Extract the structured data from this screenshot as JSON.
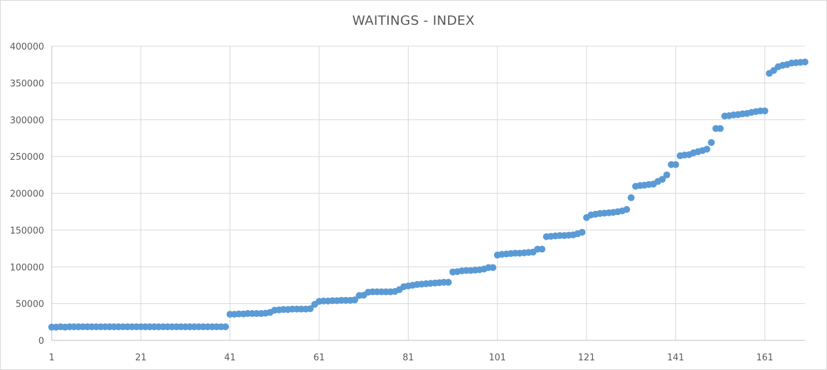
{
  "chart_data": {
    "type": "scatter",
    "title": "WAITINGS - INDEX",
    "xlabel": "",
    "ylabel": "",
    "xlim": [
      1,
      170
    ],
    "ylim": [
      0,
      400000
    ],
    "x_ticks": [
      1,
      21,
      41,
      61,
      81,
      101,
      121,
      141,
      161
    ],
    "y_ticks": [
      0,
      50000,
      100000,
      150000,
      200000,
      250000,
      300000,
      350000,
      400000
    ],
    "grid": true,
    "legend": "none",
    "marker_color": "#5b9bd5",
    "series": [
      {
        "values": [
          18000,
          18000,
          18500,
          18000,
          18500,
          18500,
          18500,
          18500,
          18500,
          18500,
          18500,
          18500,
          18500,
          18500,
          18500,
          18500,
          18500,
          18500,
          18500,
          18500,
          18500,
          18500,
          18500,
          18500,
          18500,
          18500,
          18500,
          18500,
          18500,
          18500,
          18500,
          18500,
          18500,
          18500,
          18500,
          18500,
          18500,
          18500,
          18500,
          18500,
          35500,
          35500,
          36000,
          36000,
          36500,
          36500,
          36500,
          36500,
          37000,
          38000,
          41000,
          41500,
          42000,
          42000,
          42500,
          42500,
          42500,
          42500,
          43000,
          49000,
          53000,
          53500,
          53500,
          54000,
          54000,
          54500,
          54500,
          54500,
          55000,
          61000,
          61500,
          65500,
          66000,
          66000,
          66000,
          66000,
          66000,
          66500,
          69000,
          73000,
          74000,
          75000,
          76000,
          76500,
          77000,
          77500,
          78000,
          78500,
          79000,
          79000,
          93000,
          93500,
          94500,
          95000,
          95000,
          95500,
          96000,
          97000,
          99000,
          99000,
          116000,
          117000,
          117500,
          118000,
          118500,
          118500,
          119000,
          119500,
          120000,
          124000,
          124000,
          141000,
          141500,
          142000,
          142500,
          142500,
          143000,
          143500,
          145000,
          147000,
          167000,
          170500,
          171500,
          172500,
          173000,
          173500,
          174000,
          175000,
          176000,
          178000,
          194000,
          209500,
          210500,
          211000,
          212000,
          212500,
          216000,
          219000,
          225000,
          239000,
          239000,
          251000,
          252000,
          252500,
          255000,
          256500,
          258000,
          260000,
          269000,
          288000,
          288000,
          305000,
          305500,
          306500,
          307000,
          308000,
          308500,
          310000,
          311000,
          312000,
          312000,
          363000,
          367000,
          372000,
          374000,
          375000,
          377000,
          377500,
          378000,
          378500
        ]
      }
    ]
  }
}
